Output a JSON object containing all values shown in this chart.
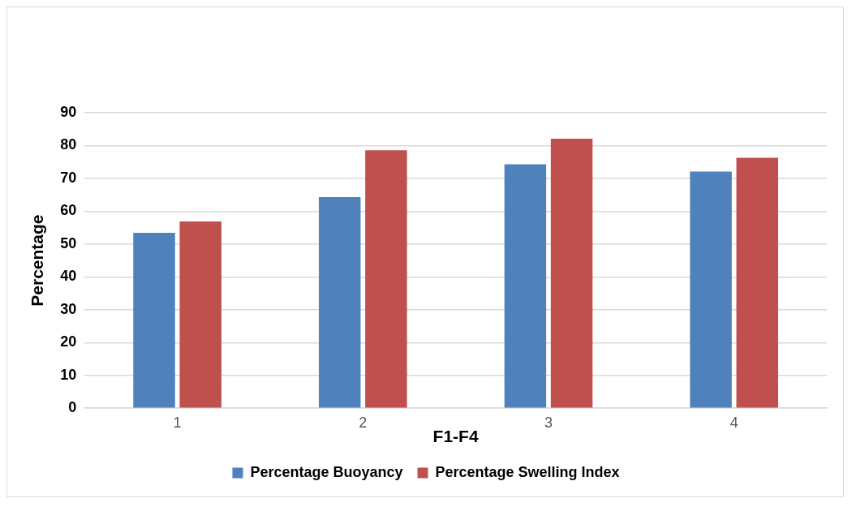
{
  "chart_data": {
    "type": "bar",
    "xlabel": "F1-F4",
    "ylabel": "Percentage",
    "categories": [
      "1",
      "2",
      "3",
      "4"
    ],
    "series": [
      {
        "name": "Percentage Buoyancy",
        "color": "#4f81bd",
        "values": [
          53.4,
          64.3,
          74.3,
          72.1
        ]
      },
      {
        "name": "Percentage Swelling Index",
        "color": "#c0504d",
        "values": [
          56.9,
          78.6,
          82.1,
          76.3
        ]
      }
    ],
    "ylim": [
      0,
      90
    ],
    "yticks": [
      0,
      10,
      20,
      30,
      40,
      50,
      60,
      70,
      80,
      90
    ],
    "grid": "y",
    "legend": "bottom"
  }
}
